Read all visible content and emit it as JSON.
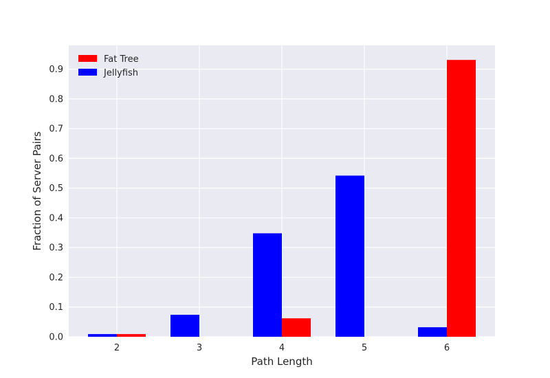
{
  "chart_data": {
    "type": "bar",
    "title": "",
    "xlabel": "Path Length",
    "ylabel": "Fraction of Server Pairs",
    "categories": [
      "2",
      "3",
      "4",
      "5",
      "6"
    ],
    "series": [
      {
        "name": "Jellyfish",
        "color": "#0000ff",
        "values": [
          0.009,
          0.074,
          0.348,
          0.542,
          0.032
        ]
      },
      {
        "name": "Fat Tree",
        "color": "#ff0000",
        "values": [
          0.009,
          0.0,
          0.062,
          0.0,
          0.931
        ]
      }
    ],
    "ylim": [
      0,
      0.98
    ],
    "yticks": [
      "0.0",
      "0.1",
      "0.2",
      "0.3",
      "0.4",
      "0.5",
      "0.6",
      "0.7",
      "0.8",
      "0.9"
    ],
    "legend": {
      "placement": "top-left",
      "entries": [
        "Fat Tree",
        "Jellyfish"
      ]
    },
    "grid": true,
    "background": "#eaeaf2"
  }
}
